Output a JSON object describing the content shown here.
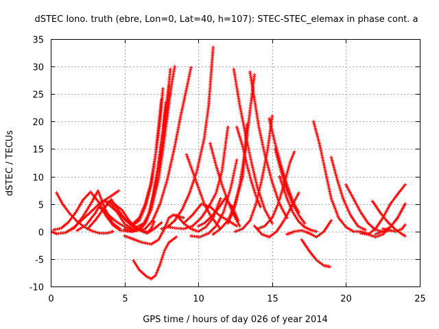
{
  "chart_data": {
    "type": "scatter",
    "title": "dSTEC Iono. truth (ebre, Lon=0, Lat=40, h=107): STEC-STEC_elemax in phase cont. a",
    "xlabel": "GPS time / hours of day 026 of year 2014",
    "ylabel": "dSTEC  / TECUs",
    "xlim": [
      0,
      25
    ],
    "ylim": [
      -10,
      35
    ],
    "xticks": [
      0,
      5,
      10,
      15,
      20,
      25
    ],
    "yticks": [
      -10,
      -5,
      0,
      5,
      10,
      15,
      20,
      25,
      30,
      35
    ],
    "grid": true,
    "marker": "+",
    "color": "#ff0000",
    "series": [
      {
        "x": [
          0.0,
          0.4,
          1.0,
          1.6,
          2.2,
          2.8,
          3.4,
          4.0,
          4.6
        ],
        "y": [
          0.0,
          -0.4,
          -0.2,
          0.8,
          2.3,
          3.8,
          5.3,
          6.3,
          7.4
        ]
      },
      {
        "x": [
          0.4,
          0.8,
          1.3,
          1.8,
          2.3,
          2.8,
          3.3,
          3.8,
          4.2
        ],
        "y": [
          7.0,
          5.0,
          3.2,
          1.8,
          0.8,
          0.1,
          -0.3,
          -0.3,
          0.0
        ]
      },
      {
        "x": [
          0.2,
          0.7,
          1.2,
          1.7,
          2.2,
          2.7,
          3.2,
          3.7,
          4.2,
          4.7
        ],
        "y": [
          0.3,
          0.6,
          1.7,
          3.5,
          5.8,
          7.2,
          5.5,
          3.0,
          1.2,
          0.2
        ]
      },
      {
        "x": [
          1.0,
          1.6,
          2.2,
          2.7,
          3.2,
          3.7,
          4.2,
          4.7
        ],
        "y": [
          -0.2,
          0.7,
          2.8,
          5.0,
          7.4,
          4.0,
          1.5,
          0.5
        ]
      },
      {
        "x": [
          1.8,
          2.4,
          3.0,
          3.5,
          4.0,
          4.5,
          5.0,
          5.5
        ],
        "y": [
          0.2,
          1.2,
          3.3,
          5.5,
          5.4,
          3.5,
          1.4,
          0.5
        ]
      },
      {
        "x": [
          2.5,
          3.0,
          3.6,
          4.1,
          4.6,
          5.1,
          5.6,
          6.1
        ],
        "y": [
          0.5,
          2.0,
          4.2,
          5.8,
          3.8,
          2.0,
          0.8,
          0.4
        ]
      },
      {
        "x": [
          3.3,
          3.8,
          4.2,
          4.6,
          5.0,
          5.5,
          6.0,
          6.4
        ],
        "y": [
          4.4,
          3.3,
          2.3,
          1.5,
          0.9,
          0.3,
          0.2,
          0.5
        ]
      },
      {
        "x": [
          3.8,
          4.4,
          5.0,
          5.6,
          6.2,
          6.6,
          7.0,
          7.5
        ],
        "y": [
          5.2,
          3.8,
          2.3,
          1.0,
          0.2,
          -0.2,
          0.5,
          1.6
        ]
      },
      {
        "x": [
          4.3,
          4.8,
          5.3,
          5.8,
          6.2,
          6.5,
          6.8,
          7.0
        ],
        "y": [
          5.0,
          4.0,
          2.0,
          0.7,
          0.0,
          -0.3,
          0.5,
          1.8
        ]
      },
      {
        "x": [
          4.8,
          5.3,
          5.8,
          6.3,
          6.8,
          7.3,
          7.6,
          7.9,
          8.2,
          8.4
        ],
        "y": [
          0.2,
          0.0,
          0.2,
          1.2,
          4.0,
          9.5,
          15.0,
          21.0,
          27.0,
          30.0
        ]
      },
      {
        "x": [
          5.0,
          5.5,
          6.0,
          6.5,
          6.9,
          7.3,
          7.6,
          7.9,
          8.1
        ],
        "y": [
          0.5,
          0.0,
          0.5,
          2.0,
          6.0,
          12.0,
          18.0,
          24.0,
          29.5
        ]
      },
      {
        "x": [
          5.5,
          6.0,
          6.4,
          6.8,
          7.1,
          7.4,
          7.7,
          8.0
        ],
        "y": [
          0.5,
          0.3,
          1.5,
          4.0,
          8.0,
          14.0,
          20.0,
          26.5
        ]
      },
      {
        "x": [
          5.8,
          6.3,
          6.7,
          7.0,
          7.3,
          7.6,
          7.8
        ],
        "y": [
          0.8,
          1.5,
          3.5,
          7.0,
          12.0,
          18.0,
          23.5
        ]
      },
      {
        "x": [
          5.5,
          6.0,
          6.4,
          6.8,
          7.1,
          7.4,
          7.6
        ],
        "y": [
          1.0,
          2.0,
          4.5,
          8.5,
          14.0,
          20.0,
          26.0
        ]
      },
      {
        "x": [
          5.6,
          6.0,
          6.4,
          6.8,
          7.1,
          7.3,
          7.5
        ],
        "y": [
          1.5,
          2.5,
          5.0,
          9.0,
          14.0,
          19.0,
          24.0
        ]
      },
      {
        "x": [
          5.0,
          5.6,
          6.2,
          6.8,
          7.3,
          7.7,
          8.0,
          8.3,
          8.6,
          9.0
        ],
        "y": [
          -0.8,
          -1.4,
          -2.0,
          -2.3,
          -1.5,
          0.5,
          2.5,
          3.0,
          2.8,
          2.5
        ]
      },
      {
        "x": [
          5.6,
          6.0,
          6.5,
          6.8,
          7.1,
          7.4,
          7.7,
          8.0,
          8.5
        ],
        "y": [
          -5.3,
          -7.0,
          -8.2,
          -8.6,
          -8.0,
          -6.0,
          -3.5,
          -2.0,
          -1.0
        ]
      },
      {
        "x": [
          6.4,
          6.9,
          7.4,
          7.9,
          8.4,
          8.8,
          9.2,
          9.5
        ],
        "y": [
          0.5,
          2.0,
          5.0,
          9.5,
          15.5,
          21.0,
          26.0,
          29.8
        ]
      },
      {
        "x": [
          7.5,
          7.9,
          8.4,
          8.9,
          9.4,
          9.9,
          10.4,
          10.7,
          11.0
        ],
        "y": [
          0.5,
          0.8,
          2.0,
          4.0,
          7.0,
          11.0,
          17.0,
          23.0,
          33.5
        ]
      },
      {
        "x": [
          8.0,
          8.5,
          9.0,
          9.6,
          10.2,
          10.7,
          11.2,
          11.6,
          12.0
        ],
        "y": [
          0.8,
          0.6,
          0.5,
          1.0,
          2.5,
          4.5,
          7.0,
          11.0,
          19.0
        ]
      },
      {
        "x": [
          9.2,
          9.6,
          10.0,
          10.4,
          10.8,
          11.2,
          11.5
        ],
        "y": [
          14.0,
          11.0,
          8.0,
          5.0,
          3.0,
          1.5,
          0.5
        ]
      },
      {
        "x": [
          9.0,
          9.6,
          10.2,
          10.8,
          11.4,
          12.0,
          12.6
        ],
        "y": [
          1.5,
          3.0,
          5.0,
          4.5,
          3.0,
          2.0,
          1.0
        ]
      },
      {
        "x": [
          8.5,
          9.0,
          9.5,
          10.0,
          10.5,
          11.0,
          11.5
        ],
        "y": [
          3.0,
          1.5,
          0.5,
          0.0,
          0.8,
          2.5,
          6.0
        ]
      },
      {
        "x": [
          9.5,
          10.1,
          10.7,
          11.2,
          11.7,
          12.2,
          12.6
        ],
        "y": [
          -0.8,
          -1.0,
          -0.3,
          1.0,
          3.5,
          8.0,
          13.0
        ]
      },
      {
        "x": [
          10.0,
          10.4,
          10.8,
          11.3,
          11.8,
          12.3,
          12.7
        ],
        "y": [
          1.0,
          1.5,
          2.5,
          4.0,
          6.0,
          4.5,
          2.0
        ]
      },
      {
        "x": [
          10.8,
          11.2,
          11.6,
          12.0,
          12.4,
          12.8
        ],
        "y": [
          16.0,
          12.0,
          8.5,
          5.5,
          3.0,
          1.0
        ]
      },
      {
        "x": [
          11.0,
          11.5,
          12.0,
          12.5,
          13.0,
          13.3
        ],
        "y": [
          -0.5,
          0.5,
          2.0,
          5.0,
          10.0,
          19.5
        ]
      },
      {
        "x": [
          12.4,
          12.8,
          13.2,
          13.6,
          14.0,
          14.5,
          15.0
        ],
        "y": [
          29.5,
          23.0,
          17.5,
          12.5,
          8.0,
          4.0,
          1.5
        ]
      },
      {
        "x": [
          12.6,
          13.0,
          13.3,
          13.6,
          13.9,
          14.2
        ],
        "y": [
          19.0,
          15.5,
          12.0,
          9.0,
          6.5,
          4.5
        ]
      },
      {
        "x": [
          12.0,
          12.4,
          12.8,
          13.2,
          13.5,
          13.8
        ],
        "y": [
          1.5,
          4.0,
          8.5,
          15.0,
          22.0,
          28.5
        ]
      },
      {
        "x": [
          13.5,
          13.8,
          14.1,
          14.5,
          15.0,
          15.5,
          16.0
        ],
        "y": [
          29.0,
          24.0,
          19.0,
          14.0,
          9.0,
          5.0,
          2.5
        ]
      },
      {
        "x": [
          12.5,
          13.0,
          13.5,
          13.9,
          14.3,
          14.7,
          15.0
        ],
        "y": [
          0.0,
          0.5,
          2.0,
          5.0,
          9.5,
          15.0,
          21.0
        ]
      },
      {
        "x": [
          14.8,
          15.2,
          15.6,
          16.0,
          16.4,
          16.8
        ],
        "y": [
          20.5,
          16.0,
          12.0,
          8.5,
          5.5,
          3.5
        ]
      },
      {
        "x": [
          15.2,
          15.6,
          16.0,
          16.4,
          16.8,
          17.2
        ],
        "y": [
          15.0,
          11.0,
          7.5,
          5.0,
          3.0,
          1.5
        ]
      },
      {
        "x": [
          14.0,
          14.5,
          15.0,
          15.4,
          15.8,
          16.2,
          16.5
        ],
        "y": [
          0.5,
          1.0,
          2.5,
          5.0,
          8.5,
          12.5,
          14.5
        ]
      },
      {
        "x": [
          13.8,
          14.3,
          14.8,
          15.3,
          15.8,
          16.3,
          16.8
        ],
        "y": [
          1.0,
          -0.5,
          -1.0,
          0.0,
          2.0,
          4.5,
          7.0
        ]
      },
      {
        "x": [
          15.5,
          16.0,
          16.4,
          16.8,
          17.2,
          17.6,
          18.0
        ],
        "y": [
          10.0,
          6.0,
          3.5,
          1.8,
          0.8,
          0.3,
          0.0
        ]
      },
      {
        "x": [
          16.0,
          16.5,
          17.0,
          17.5,
          18.0,
          18.5,
          19.0
        ],
        "y": [
          -0.5,
          0.0,
          0.2,
          -0.3,
          -1.0,
          0.0,
          2.0
        ]
      },
      {
        "x": [
          17.8,
          18.2,
          18.6,
          19.0,
          19.5,
          20.0,
          20.5
        ],
        "y": [
          20.0,
          16.0,
          11.0,
          6.0,
          2.5,
          0.8,
          0.0
        ]
      },
      {
        "x": [
          17.0,
          17.5,
          18.0,
          18.5,
          18.9
        ],
        "y": [
          -1.5,
          -3.5,
          -5.2,
          -6.2,
          -6.4
        ]
      },
      {
        "x": [
          19.0,
          19.4,
          19.8,
          20.3,
          20.8,
          21.3
        ],
        "y": [
          13.5,
          9.5,
          6.0,
          3.0,
          1.0,
          0.3
        ]
      },
      {
        "x": [
          20.0,
          20.5,
          21.0,
          21.5,
          22.0,
          22.5,
          23.0
        ],
        "y": [
          8.5,
          6.0,
          3.5,
          1.5,
          0.3,
          0.0,
          0.2
        ]
      },
      {
        "x": [
          20.5,
          21.0,
          21.5,
          22.0,
          22.5,
          23.0,
          23.5,
          24.0
        ],
        "y": [
          0.0,
          0.0,
          -0.5,
          -1.0,
          -0.5,
          0.8,
          2.5,
          5.0
        ]
      },
      {
        "x": [
          21.0,
          21.5,
          22.0,
          22.5,
          23.0,
          23.5,
          24.0
        ],
        "y": [
          -0.3,
          -0.5,
          0.5,
          2.5,
          5.0,
          6.8,
          8.5
        ]
      },
      {
        "x": [
          21.8,
          22.3,
          22.8,
          23.3,
          23.8,
          24.0
        ],
        "y": [
          5.5,
          3.5,
          1.8,
          0.5,
          -0.5,
          -0.8
        ]
      },
      {
        "x": [
          22.0,
          22.5,
          23.0,
          23.5,
          24.0
        ],
        "y": [
          -0.5,
          0.0,
          0.8,
          2.5,
          5.0
        ]
      },
      {
        "x": [
          22.5,
          23.0,
          23.4,
          23.8,
          24.0
        ],
        "y": [
          0.5,
          0.2,
          0.0,
          0.5,
          1.2
        ]
      }
    ]
  }
}
